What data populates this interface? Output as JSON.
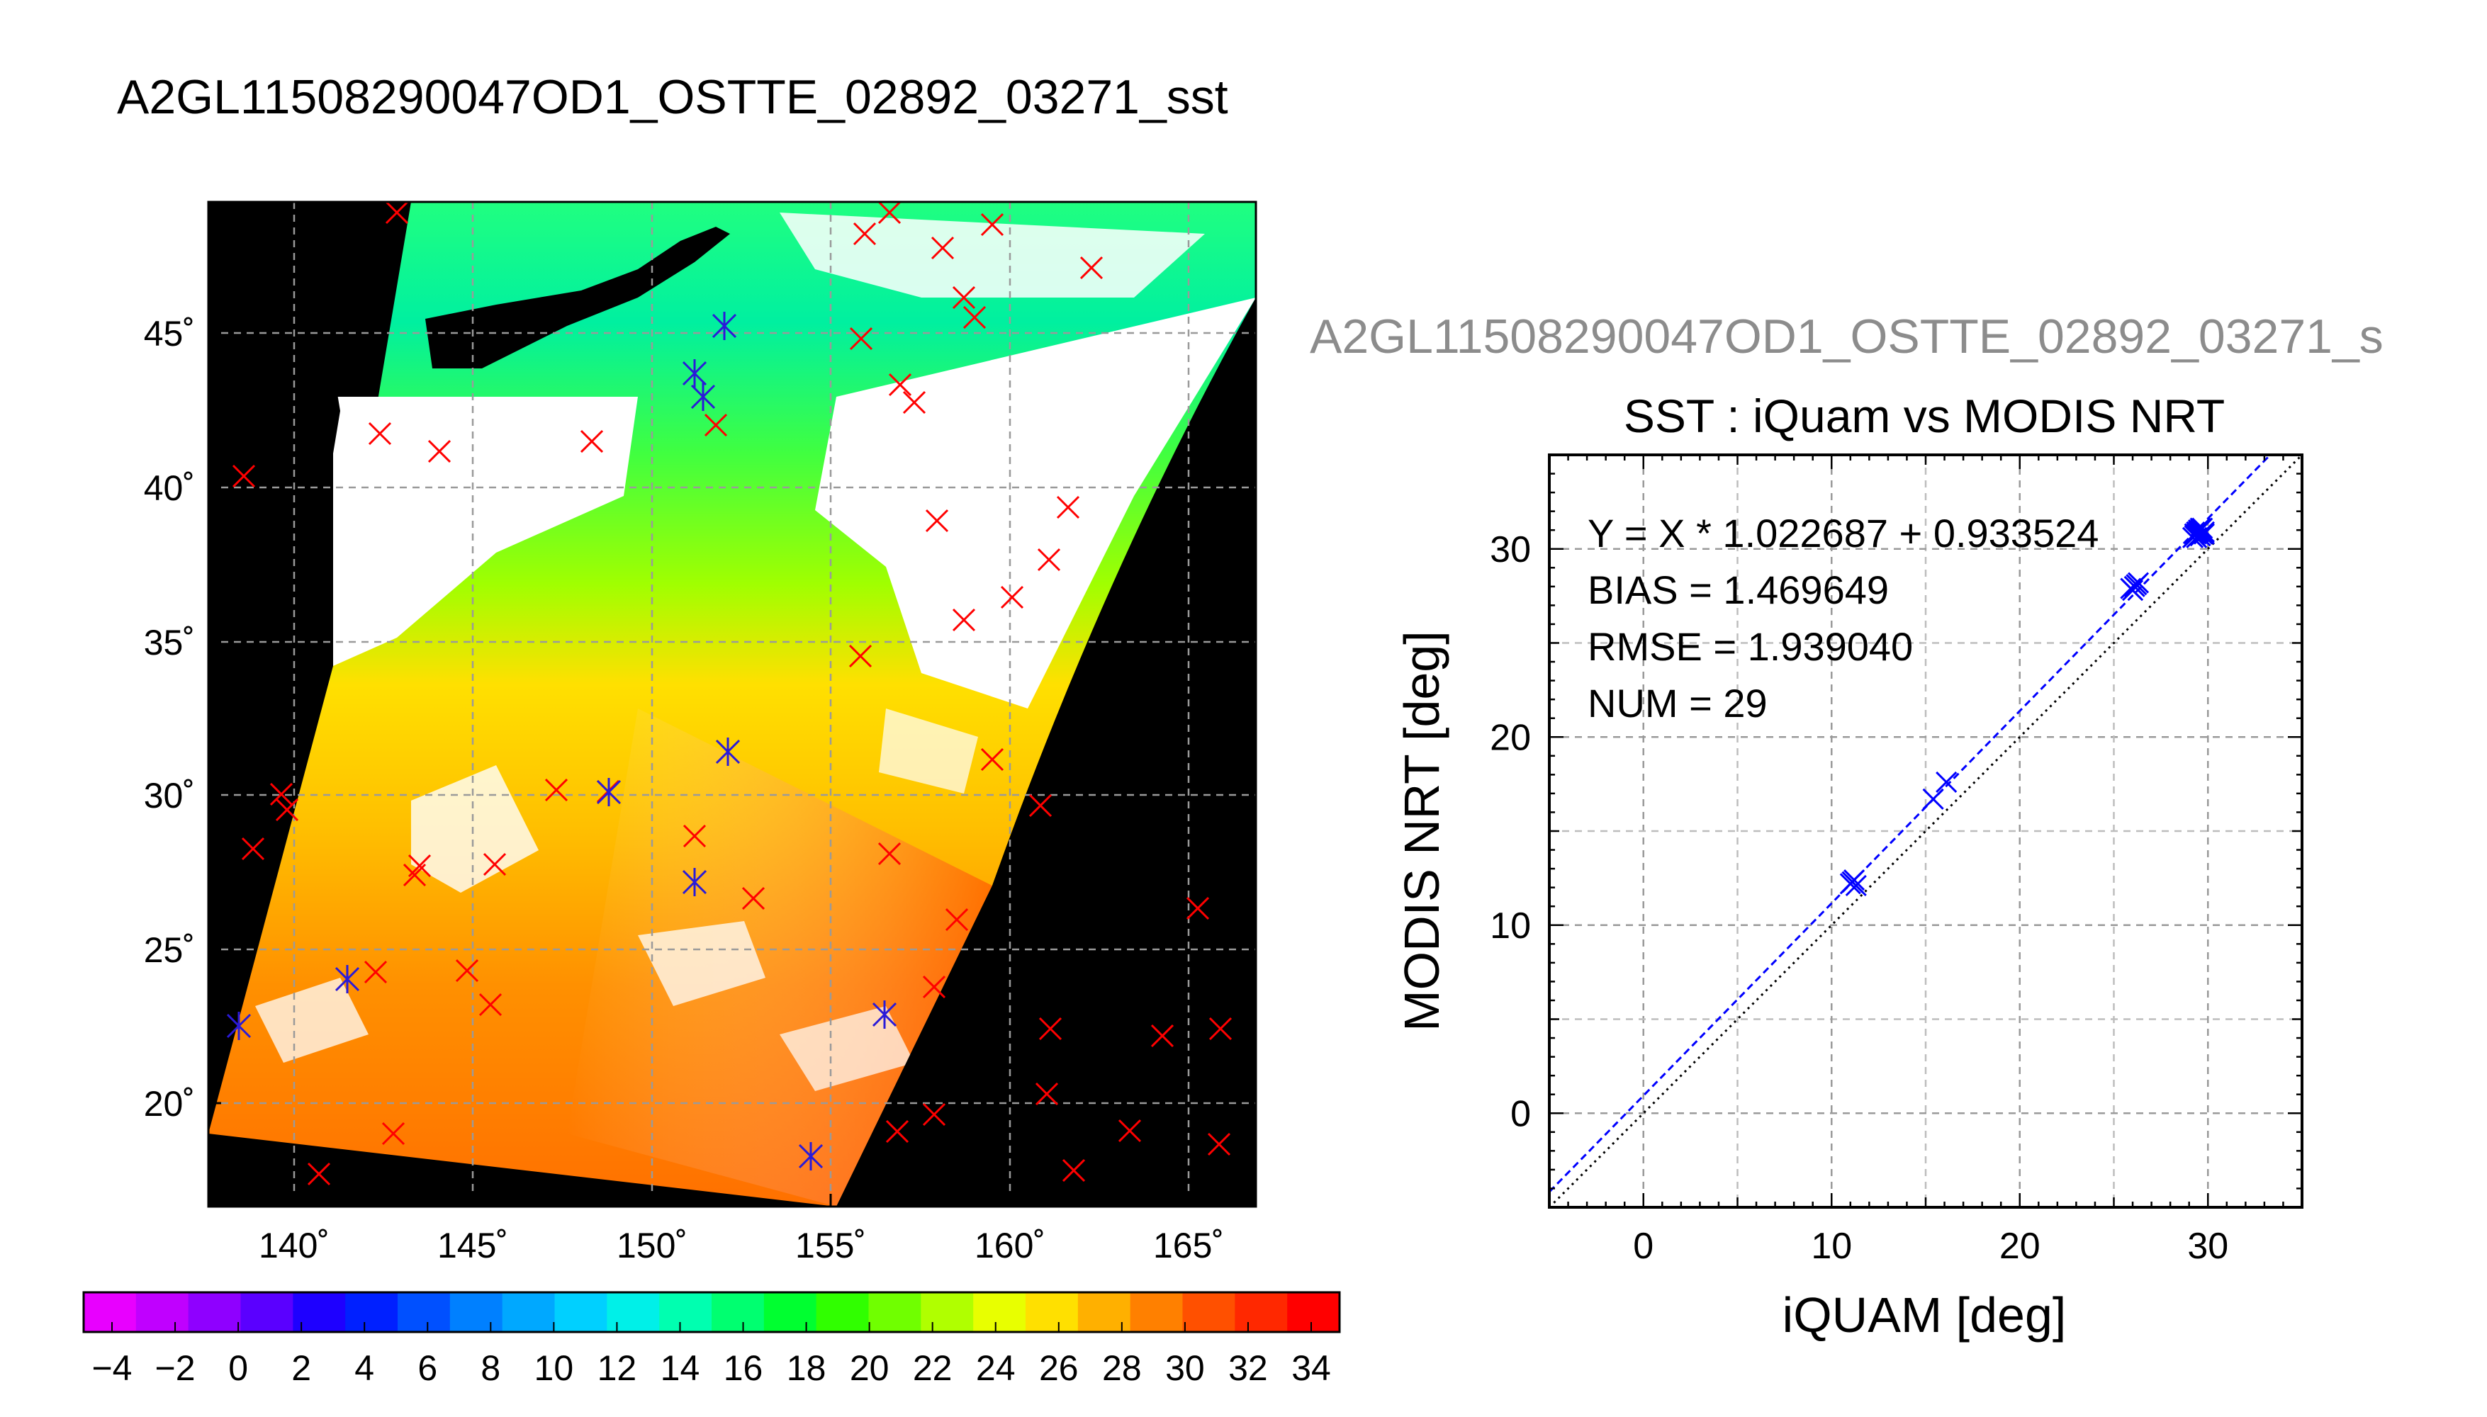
{
  "page_title": "A2GL11508290047OD1_OSTTE_02892_03271_sst",
  "map": {
    "lon_ticks": [
      "140˚",
      "145˚",
      "150˚",
      "155˚",
      "160˚",
      "165˚"
    ],
    "lat_ticks": [
      "45˚",
      "40˚",
      "35˚",
      "30˚",
      "25˚",
      "20˚"
    ],
    "colors": {
      "land": "#000000",
      "cloud": "#ffffff",
      "out_of_swath": "#000000"
    }
  },
  "colorbar": {
    "tick_labels": [
      "−4",
      "−2",
      "0",
      "2",
      "4",
      "6",
      "8",
      "10",
      "12",
      "14",
      "16",
      "18",
      "20",
      "22",
      "24",
      "26",
      "28",
      "30",
      "32",
      "34"
    ],
    "colors": [
      "#e800ff",
      "#c000ff",
      "#8f00ff",
      "#5a00ff",
      "#1e00ff",
      "#0020ff",
      "#0050ff",
      "#0080ff",
      "#00a8ff",
      "#00d0ff",
      "#00f0e8",
      "#00ffb0",
      "#00ff70",
      "#00ff30",
      "#30ff00",
      "#70ff00",
      "#b0ff00",
      "#e8ff00",
      "#ffe000",
      "#ffb000",
      "#ff8000",
      "#ff5000",
      "#ff2800",
      "#ff0000"
    ]
  },
  "scatter_panel": {
    "header": "A2GL11508290047OD1_OSTTE_02892_03271_s",
    "stats": {
      "equation": "Y = X * 1.022687 + 0.933524",
      "bias": "BIAS = 1.469649",
      "rmse": "RMSE = 1.939040",
      "num": "NUM = 29"
    }
  },
  "chart_data": {
    "type": "scatter",
    "title": "SST : iQuam vs MODIS NRT",
    "xlabel": "iQUAM [deg]",
    "ylabel": "MODIS NRT [deg]",
    "xlim": [
      -5,
      35
    ],
    "ylim": [
      -5,
      35
    ],
    "xticks": [
      "0",
      "10",
      "20",
      "30"
    ],
    "yticks": [
      "0",
      "10",
      "20",
      "30"
    ],
    "grid": true,
    "series": [
      {
        "marker": "x",
        "color": "#0000ff",
        "x": [
          11.0,
          11.2,
          11.3,
          11.1,
          15.4,
          16.1,
          26.0,
          26.2,
          25.9,
          26.1,
          26.3,
          29.2,
          29.5,
          29.7,
          29.4,
          29.6,
          29.3,
          29.8,
          29.5,
          29.4,
          29.6,
          29.7,
          29.5,
          29.3,
          29.6,
          29.4,
          29.5,
          29.8,
          29.6
        ],
        "y": [
          12.2,
          12.4,
          12.1,
          12.3,
          16.7,
          17.6,
          27.8,
          28.1,
          27.9,
          28.0,
          28.2,
          30.6,
          31.0,
          30.8,
          30.9,
          31.1,
          30.7,
          30.9,
          31.0,
          30.8,
          30.7,
          31.1,
          30.9,
          30.8,
          31.0,
          30.6,
          30.9,
          30.8,
          31.0
        ]
      }
    ],
    "lines": [
      {
        "kind": "regression",
        "slope": 1.022687,
        "intercept": 0.933524,
        "color": "#0000ff",
        "style": "dashed"
      },
      {
        "kind": "one-to-one",
        "slope": 1,
        "intercept": 0,
        "color": "#000000",
        "style": "dotted"
      }
    ]
  }
}
